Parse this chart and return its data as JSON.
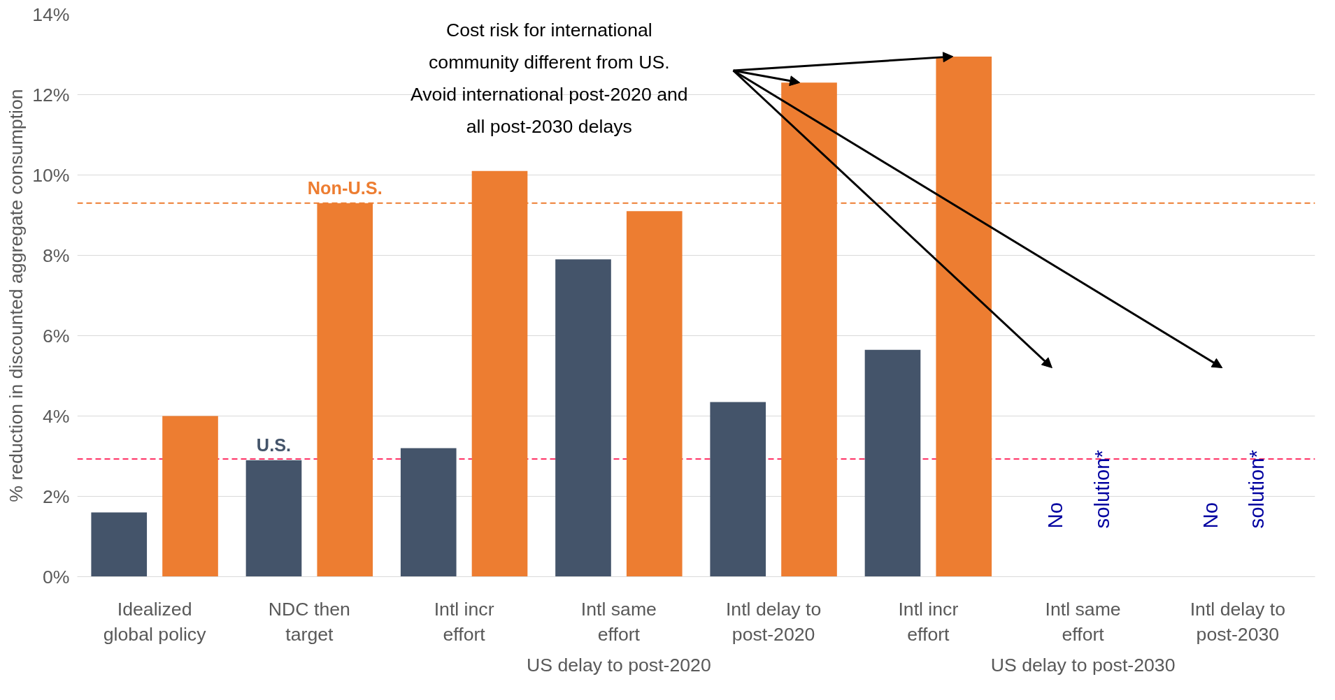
{
  "chart_data": {
    "type": "bar",
    "ylabel": "% reduction in discounted aggregate consumption",
    "categories": [
      "Idealized global policy",
      "NDC then target",
      "Intl incr effort",
      "Intl same effort",
      "Intl delay to post-2020",
      "Intl incr effort",
      "Intl same effort",
      "Intl delay to post-2030"
    ],
    "series": [
      {
        "name": "U.S.",
        "color": "#44546a",
        "values": [
          1.6,
          2.9,
          3.2,
          7.9,
          4.35,
          5.65,
          null,
          null
        ]
      },
      {
        "name": "Non-U.S.",
        "color": "#ed7d31",
        "values": [
          4.0,
          9.3,
          10.1,
          9.1,
          12.3,
          12.95,
          null,
          null
        ]
      }
    ],
    "ylim": [
      0,
      14
    ],
    "yticks": [
      {
        "value": 0,
        "label": "0%"
      },
      {
        "value": 2,
        "label": "2%"
      },
      {
        "value": 4,
        "label": "4%"
      },
      {
        "value": 6,
        "label": "6%"
      },
      {
        "value": 8,
        "label": "8%"
      },
      {
        "value": 10,
        "label": "10%"
      },
      {
        "value": 12,
        "label": "12%"
      },
      {
        "value": 14,
        "label": "14%"
      }
    ],
    "grid": "y",
    "ref_lines": [
      {
        "axis": "y",
        "value": 9.3,
        "color": "#ed7d31",
        "line_style": "dashed"
      },
      {
        "axis": "y",
        "value": 2.93,
        "color": "#ff3366",
        "line_style": "dashed"
      }
    ],
    "annotations": [
      "Cost risk for international community different from US. Avoid international post-2020 and all post-2030 delays",
      "No solution*",
      "No solution*",
      "US delay to post-2020",
      "US delay to post-2030"
    ]
  }
}
